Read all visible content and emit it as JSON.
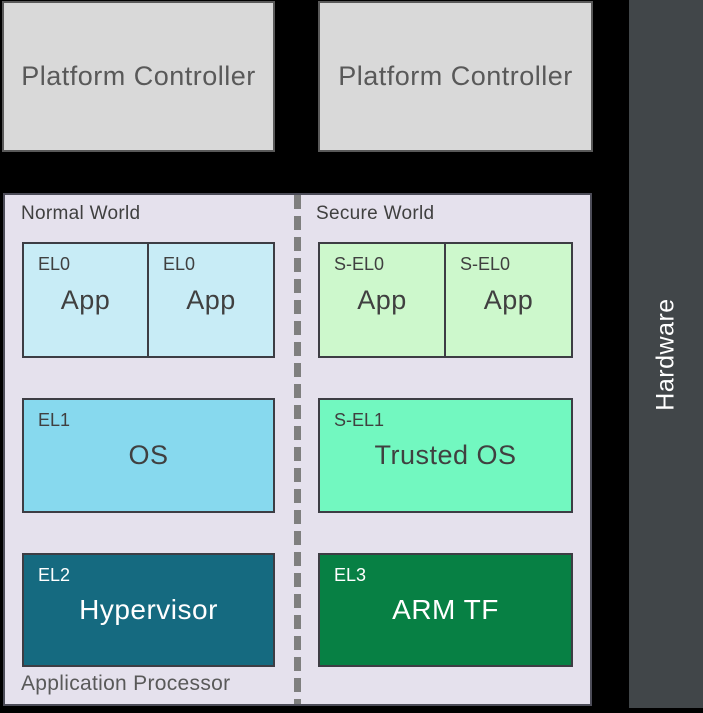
{
  "colors": {
    "background": "#000000",
    "pc_fill": "#d9d9d9",
    "pc_border": "#595959",
    "hardware_fill": "#414649",
    "ap_fill": "#e5e1ed",
    "ap_border": "#4c4c58",
    "box_border": "#3d3d44",
    "divider": "#7f7f7f",
    "el0_fill": "#c8ecf6",
    "el1_fill": "#87d9ee",
    "el2_fill": "#156a80",
    "sel0_fill": "#cdf8cc",
    "sel1_fill": "#72f8c0",
    "el3_fill": "#078044",
    "text_dark": "#404040",
    "text_gray": "#595959",
    "text_light": "#ffffff"
  },
  "platform_controllers": [
    {
      "label": "Platform Controller"
    },
    {
      "label": "Platform Controller"
    }
  ],
  "hardware": {
    "label": "Hardware"
  },
  "application_processor": {
    "label": "Application Processor",
    "normal_world": {
      "label": "Normal World",
      "el0_a": {
        "level": "EL0",
        "name": "App"
      },
      "el0_b": {
        "level": "EL0",
        "name": "App"
      },
      "el1": {
        "level": "EL1",
        "name": "OS"
      },
      "el2": {
        "level": "EL2",
        "name": "Hypervisor"
      }
    },
    "secure_world": {
      "label": "Secure World",
      "sel0_a": {
        "level": "S-EL0",
        "name": "App"
      },
      "sel0_b": {
        "level": "S-EL0",
        "name": "App"
      },
      "sel1": {
        "level": "S-EL1",
        "name": "Trusted OS"
      },
      "el3": {
        "level": "EL3",
        "name": "ARM TF"
      }
    }
  }
}
